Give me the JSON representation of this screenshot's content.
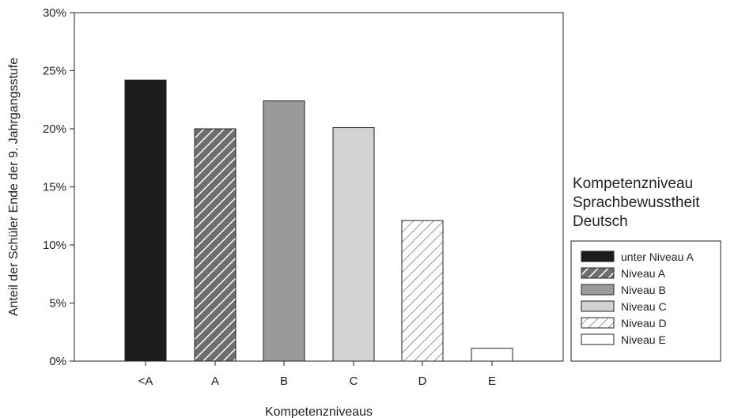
{
  "chart_data": {
    "type": "bar",
    "xlabel": "Kompetenzniveaus",
    "ylabel": "Anteil der Schüler Ende der 9. Jahrgangsstufe",
    "categories": [
      "<A",
      "A",
      "B",
      "C",
      "D",
      "E"
    ],
    "values": [
      24.2,
      20.0,
      22.4,
      20.1,
      12.1,
      1.1
    ],
    "ylim": [
      0,
      30
    ],
    "yticks": [
      "0%",
      "5%",
      "10%",
      "15%",
      "20%",
      "25%",
      "30%"
    ],
    "grid": false,
    "legend": {
      "title_lines": [
        "Kompetenzniveau",
        "Sprachbewusstheit",
        "Deutsch"
      ],
      "placement": "right",
      "entries": [
        "unter Niveau A",
        "Niveau A",
        "Niveau B",
        "Niveau C",
        "Niveau D",
        "Niveau E"
      ]
    },
    "bar_styles": [
      {
        "fill": "#1c1c1c",
        "pattern": "none"
      },
      {
        "fill": "#6e6e6e",
        "pattern": "hatch-white"
      },
      {
        "fill": "#9a9a9a",
        "pattern": "none"
      },
      {
        "fill": "#d2d2d2",
        "pattern": "none"
      },
      {
        "fill": "#ffffff",
        "pattern": "hatch-dark"
      },
      {
        "fill": "#ffffff",
        "pattern": "none"
      }
    ]
  }
}
